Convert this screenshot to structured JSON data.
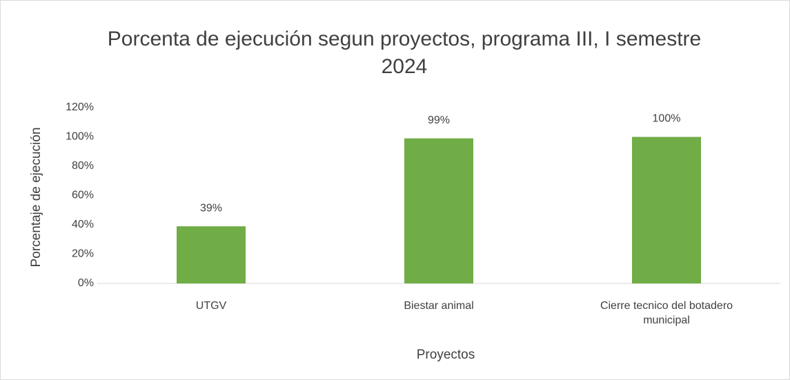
{
  "chart_data": {
    "type": "bar",
    "title": "Porcenta de ejecución segun proyectos, programa III, I semestre 2024",
    "x_label": "Proyectos",
    "y_label": "Porcentaje de ejecución",
    "categories": [
      "UTGV",
      "Biestar animal",
      "Cierre tecnico del botadero municipal"
    ],
    "values": [
      39,
      99,
      100
    ],
    "value_labels": [
      "39%",
      "99%",
      "100%"
    ],
    "color": "#70ad47",
    "ylim": [
      0,
      120
    ],
    "yticks": [
      {
        "value": 0,
        "label": "0%"
      },
      {
        "value": 20,
        "label": "20%"
      },
      {
        "value": 40,
        "label": "40%"
      },
      {
        "value": 60,
        "label": "60%"
      },
      {
        "value": 80,
        "label": "80%"
      },
      {
        "value": 100,
        "label": "100%"
      },
      {
        "value": 120,
        "label": "120%"
      }
    ],
    "grid": false
  }
}
